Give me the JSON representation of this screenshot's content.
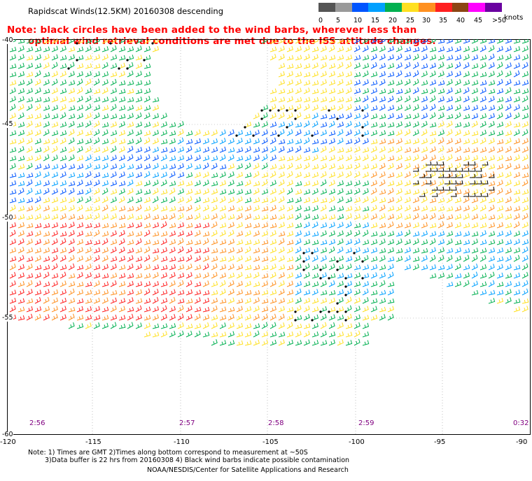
{
  "title": "Rapidscat Winds(12.5KM) 20160308 descending",
  "note": {
    "line1": "Note: black circles have been added to the wind barbs, wherever less than",
    "line2": "optimal wind retrieval conditions are met due to the ISS attitude changes."
  },
  "legend": {
    "labels": [
      "0",
      "5",
      "10",
      "15",
      "20",
      "25",
      "30",
      "35",
      "40",
      "45",
      ">50"
    ],
    "unit": "knots",
    "colors": [
      "#555555",
      "#9a9a9a",
      "#0055ff",
      "#00a0ff",
      "#00b050",
      "#ffe020",
      "#ff9020",
      "#ff2020",
      "#8b4513",
      "#ff00ff",
      "#6a00a0"
    ]
  },
  "axes": {
    "lat_labels": [
      "-40",
      "-45",
      "-50",
      "-55",
      "-60"
    ],
    "lon_labels": [
      "-120",
      "-115",
      "-110",
      "-105",
      "-100",
      "-95",
      "-90"
    ]
  },
  "times": [
    "2:56",
    "2:57",
    "2:58",
    "2:59",
    "0:32"
  ],
  "footer": {
    "line1": "Note: 1) Times are GMT 2)Times along bottom correspond to measurement at ~50S",
    "line2": "3)Data buffer is 22 hrs from 20160308 4) Black wind barbs indicate possible contamination",
    "line3": "NOAA/NESDIS/Center for Satellite Applications and Research"
  }
}
